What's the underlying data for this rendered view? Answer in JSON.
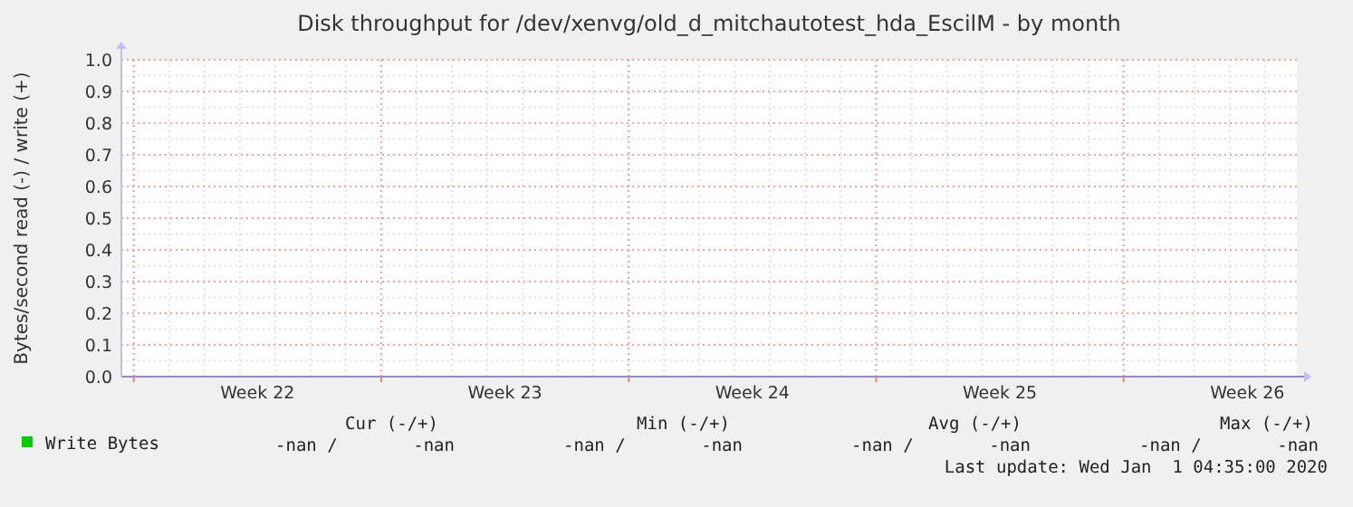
{
  "chart_data": {
    "type": "line",
    "title": "Disk throughput for /dev/xenvg/old_d_mitchautotest_hda_EscilM - by month",
    "ylabel": "Bytes/second read (-) / write (+)",
    "categories": [
      "Week 22",
      "Week 23",
      "Week 24",
      "Week 25",
      "Week 26"
    ],
    "series": [
      {
        "name": "Write Bytes",
        "color": "#00cc00",
        "values": [
          null,
          null,
          null,
          null,
          null
        ]
      }
    ],
    "ylim": [
      0,
      1
    ],
    "yticks": [
      {
        "value": 0,
        "label": "0.0"
      },
      {
        "value": 0.1,
        "label": "0.1"
      },
      {
        "value": 0.2,
        "label": "0.2"
      },
      {
        "value": 0.3,
        "label": "0.3"
      },
      {
        "value": 0.4,
        "label": "0.4"
      },
      {
        "value": 0.5,
        "label": "0.5"
      },
      {
        "value": 0.6,
        "label": "0.6"
      },
      {
        "value": 0.7,
        "label": "0.7"
      },
      {
        "value": 0.8,
        "label": "0.8"
      },
      {
        "value": 0.9,
        "label": "0.9"
      },
      {
        "value": 1,
        "label": "1.0"
      }
    ],
    "grid": true,
    "legend": "bottom left",
    "annotations": [
      "Cur (-/+)",
      "Min (-/+)",
      "Avg (-/+)",
      "Max (-/+)",
      "-nan /",
      "-nan",
      "-nan /",
      "-nan",
      "-nan /",
      "-nan",
      "-nan /",
      "-nan",
      "Last update: Wed Jan  1 04:35:00 2020"
    ]
  }
}
